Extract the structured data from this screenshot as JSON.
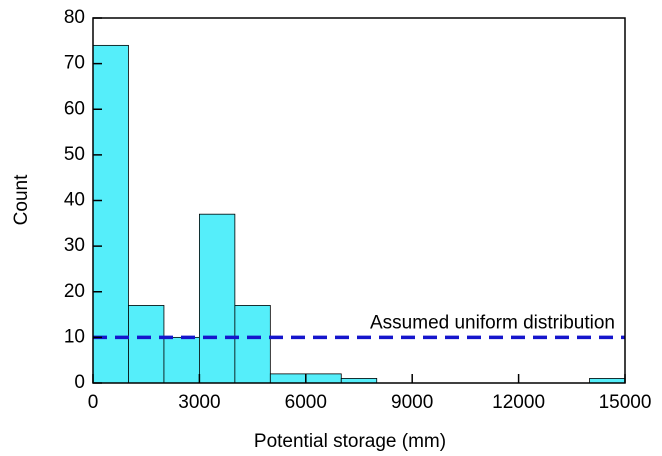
{
  "chart_data": {
    "type": "histogram",
    "xlabel": "Potential storage (mm)",
    "ylabel": "Count",
    "bins": [
      0,
      1000,
      2000,
      3000,
      4000,
      5000,
      6000,
      7000,
      8000,
      9000,
      10000,
      11000,
      12000,
      13000,
      14000,
      15000
    ],
    "values": [
      74,
      17,
      10,
      37,
      17,
      2,
      2,
      1,
      0,
      0,
      0,
      0,
      0,
      0,
      1
    ],
    "color": "#55eefa",
    "xlim": [
      0,
      15000
    ],
    "xticks": [
      0,
      3000,
      6000,
      9000,
      12000,
      15000
    ],
    "ylim": [
      0,
      80
    ],
    "yticks": [
      0,
      10,
      20,
      30,
      40,
      50,
      60,
      70,
      80
    ],
    "reference_line": {
      "value": 10,
      "label": "Assumed uniform distribution",
      "color": "#1515cc"
    }
  }
}
